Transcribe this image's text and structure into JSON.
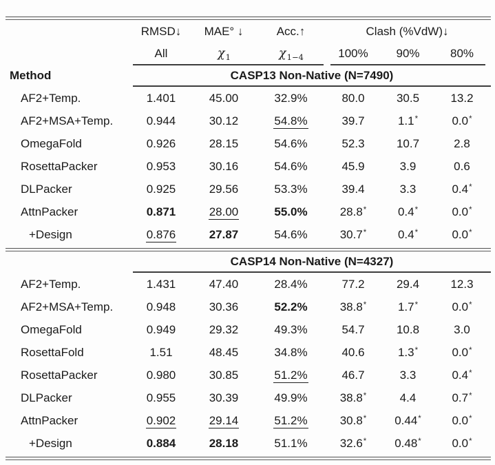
{
  "table": {
    "method_header": "Method",
    "col_groups": {
      "rmsd": {
        "label": "RMSD↓",
        "sub": "All"
      },
      "mae": {
        "label": "MAE° ↓",
        "sub": {
          "chi": "χ",
          "s": "1"
        }
      },
      "acc": {
        "label": "Acc.↑",
        "sub": {
          "chi": "χ",
          "s": "1−4"
        }
      },
      "clash": {
        "label": "Clash (%VdW)↓",
        "subs": [
          "100%",
          "90%",
          "80%"
        ]
      }
    },
    "sections": [
      {
        "title": "CASP13 Non-Native (N=7490)",
        "rows": [
          {
            "method": "AF2+Temp.",
            "indent": false,
            "cells": [
              {
                "v": "1.401"
              },
              {
                "v": "45.00"
              },
              {
                "v": "32.9%"
              },
              {
                "v": "80.0"
              },
              {
                "v": "30.5"
              },
              {
                "v": "13.2"
              }
            ]
          },
          {
            "method": "AF2+MSA+Temp.",
            "indent": false,
            "cells": [
              {
                "v": "0.944"
              },
              {
                "v": "30.12"
              },
              {
                "v": "54.8%",
                "u": true
              },
              {
                "v": "39.7"
              },
              {
                "v": "1.1",
                "star": true
              },
              {
                "v": "0.0",
                "star": true
              }
            ]
          },
          {
            "method": "OmegaFold",
            "indent": false,
            "cells": [
              {
                "v": "0.926"
              },
              {
                "v": "28.15"
              },
              {
                "v": "54.6%"
              },
              {
                "v": "52.3"
              },
              {
                "v": "10.7"
              },
              {
                "v": "2.8"
              }
            ]
          },
          {
            "method": "RosettaPacker",
            "indent": false,
            "cells": [
              {
                "v": "0.953"
              },
              {
                "v": "30.16"
              },
              {
                "v": "54.6%"
              },
              {
                "v": "45.9"
              },
              {
                "v": "3.9"
              },
              {
                "v": "0.6"
              }
            ]
          },
          {
            "method": "DLPacker",
            "indent": false,
            "cells": [
              {
                "v": "0.925"
              },
              {
                "v": "29.56"
              },
              {
                "v": "53.3%"
              },
              {
                "v": "39.4"
              },
              {
                "v": "3.3"
              },
              {
                "v": "0.4",
                "star": true
              }
            ]
          },
          {
            "method": "AttnPacker",
            "indent": false,
            "cells": [
              {
                "v": "0.871",
                "b": true
              },
              {
                "v": "28.00",
                "u": true
              },
              {
                "v": "55.0%",
                "b": true
              },
              {
                "v": "28.8",
                "star": true
              },
              {
                "v": "0.4",
                "star": true
              },
              {
                "v": "0.0",
                "star": true
              }
            ]
          },
          {
            "method": "+Design",
            "indent": true,
            "cells": [
              {
                "v": "0.876",
                "u": true
              },
              {
                "v": "27.87",
                "b": true
              },
              {
                "v": "54.6%"
              },
              {
                "v": "30.7",
                "star": true
              },
              {
                "v": "0.4",
                "star": true
              },
              {
                "v": "0.0",
                "star": true
              }
            ]
          }
        ]
      },
      {
        "title": "CASP14 Non-Native (N=4327)",
        "rows": [
          {
            "method": "AF2+Temp.",
            "indent": false,
            "cells": [
              {
                "v": "1.431"
              },
              {
                "v": "47.40"
              },
              {
                "v": "28.4%"
              },
              {
                "v": "77.2"
              },
              {
                "v": "29.4"
              },
              {
                "v": "12.3"
              }
            ]
          },
          {
            "method": "AF2+MSA+Temp.",
            "indent": false,
            "cells": [
              {
                "v": "0.948"
              },
              {
                "v": "30.36"
              },
              {
                "v": "52.2%",
                "b": true
              },
              {
                "v": "38.8",
                "star": true
              },
              {
                "v": "1.7",
                "star": true
              },
              {
                "v": "0.0",
                "star": true
              }
            ]
          },
          {
            "method": "OmegaFold",
            "indent": false,
            "cells": [
              {
                "v": "0.949"
              },
              {
                "v": "29.32"
              },
              {
                "v": "49.3%"
              },
              {
                "v": "54.7"
              },
              {
                "v": "10.8"
              },
              {
                "v": "3.0"
              }
            ]
          },
          {
            "method": "RosettaFold",
            "indent": false,
            "cells": [
              {
                "v": "1.51"
              },
              {
                "v": "48.45"
              },
              {
                "v": "34.8%"
              },
              {
                "v": "40.6"
              },
              {
                "v": "1.3",
                "star": true
              },
              {
                "v": "0.0",
                "star": true
              }
            ]
          },
          {
            "method": "RosettaPacker",
            "indent": false,
            "cells": [
              {
                "v": "0.980"
              },
              {
                "v": "30.85"
              },
              {
                "v": "51.2%",
                "u": true
              },
              {
                "v": "46.7"
              },
              {
                "v": "3.3"
              },
              {
                "v": "0.4",
                "star": true
              }
            ]
          },
          {
            "method": "DLPacker",
            "indent": false,
            "cells": [
              {
                "v": "0.955"
              },
              {
                "v": "30.39"
              },
              {
                "v": "49.9%"
              },
              {
                "v": "38.8",
                "star": true
              },
              {
                "v": "4.4"
              },
              {
                "v": "0.7",
                "star": true
              }
            ]
          },
          {
            "method": "AttnPacker",
            "indent": false,
            "cells": [
              {
                "v": "0.902",
                "u": true
              },
              {
                "v": "29.14",
                "u": true
              },
              {
                "v": "51.2%",
                "u": true
              },
              {
                "v": "30.8",
                "star": true
              },
              {
                "v": "0.44",
                "star": true
              },
              {
                "v": "0.0",
                "star": true
              }
            ]
          },
          {
            "method": "+Design",
            "indent": true,
            "cells": [
              {
                "v": "0.884",
                "b": true
              },
              {
                "v": "28.18",
                "b": true
              },
              {
                "v": "51.1%"
              },
              {
                "v": "32.6",
                "star": true
              },
              {
                "v": "0.48",
                "star": true
              },
              {
                "v": "0.0",
                "star": true
              }
            ]
          }
        ]
      }
    ]
  }
}
